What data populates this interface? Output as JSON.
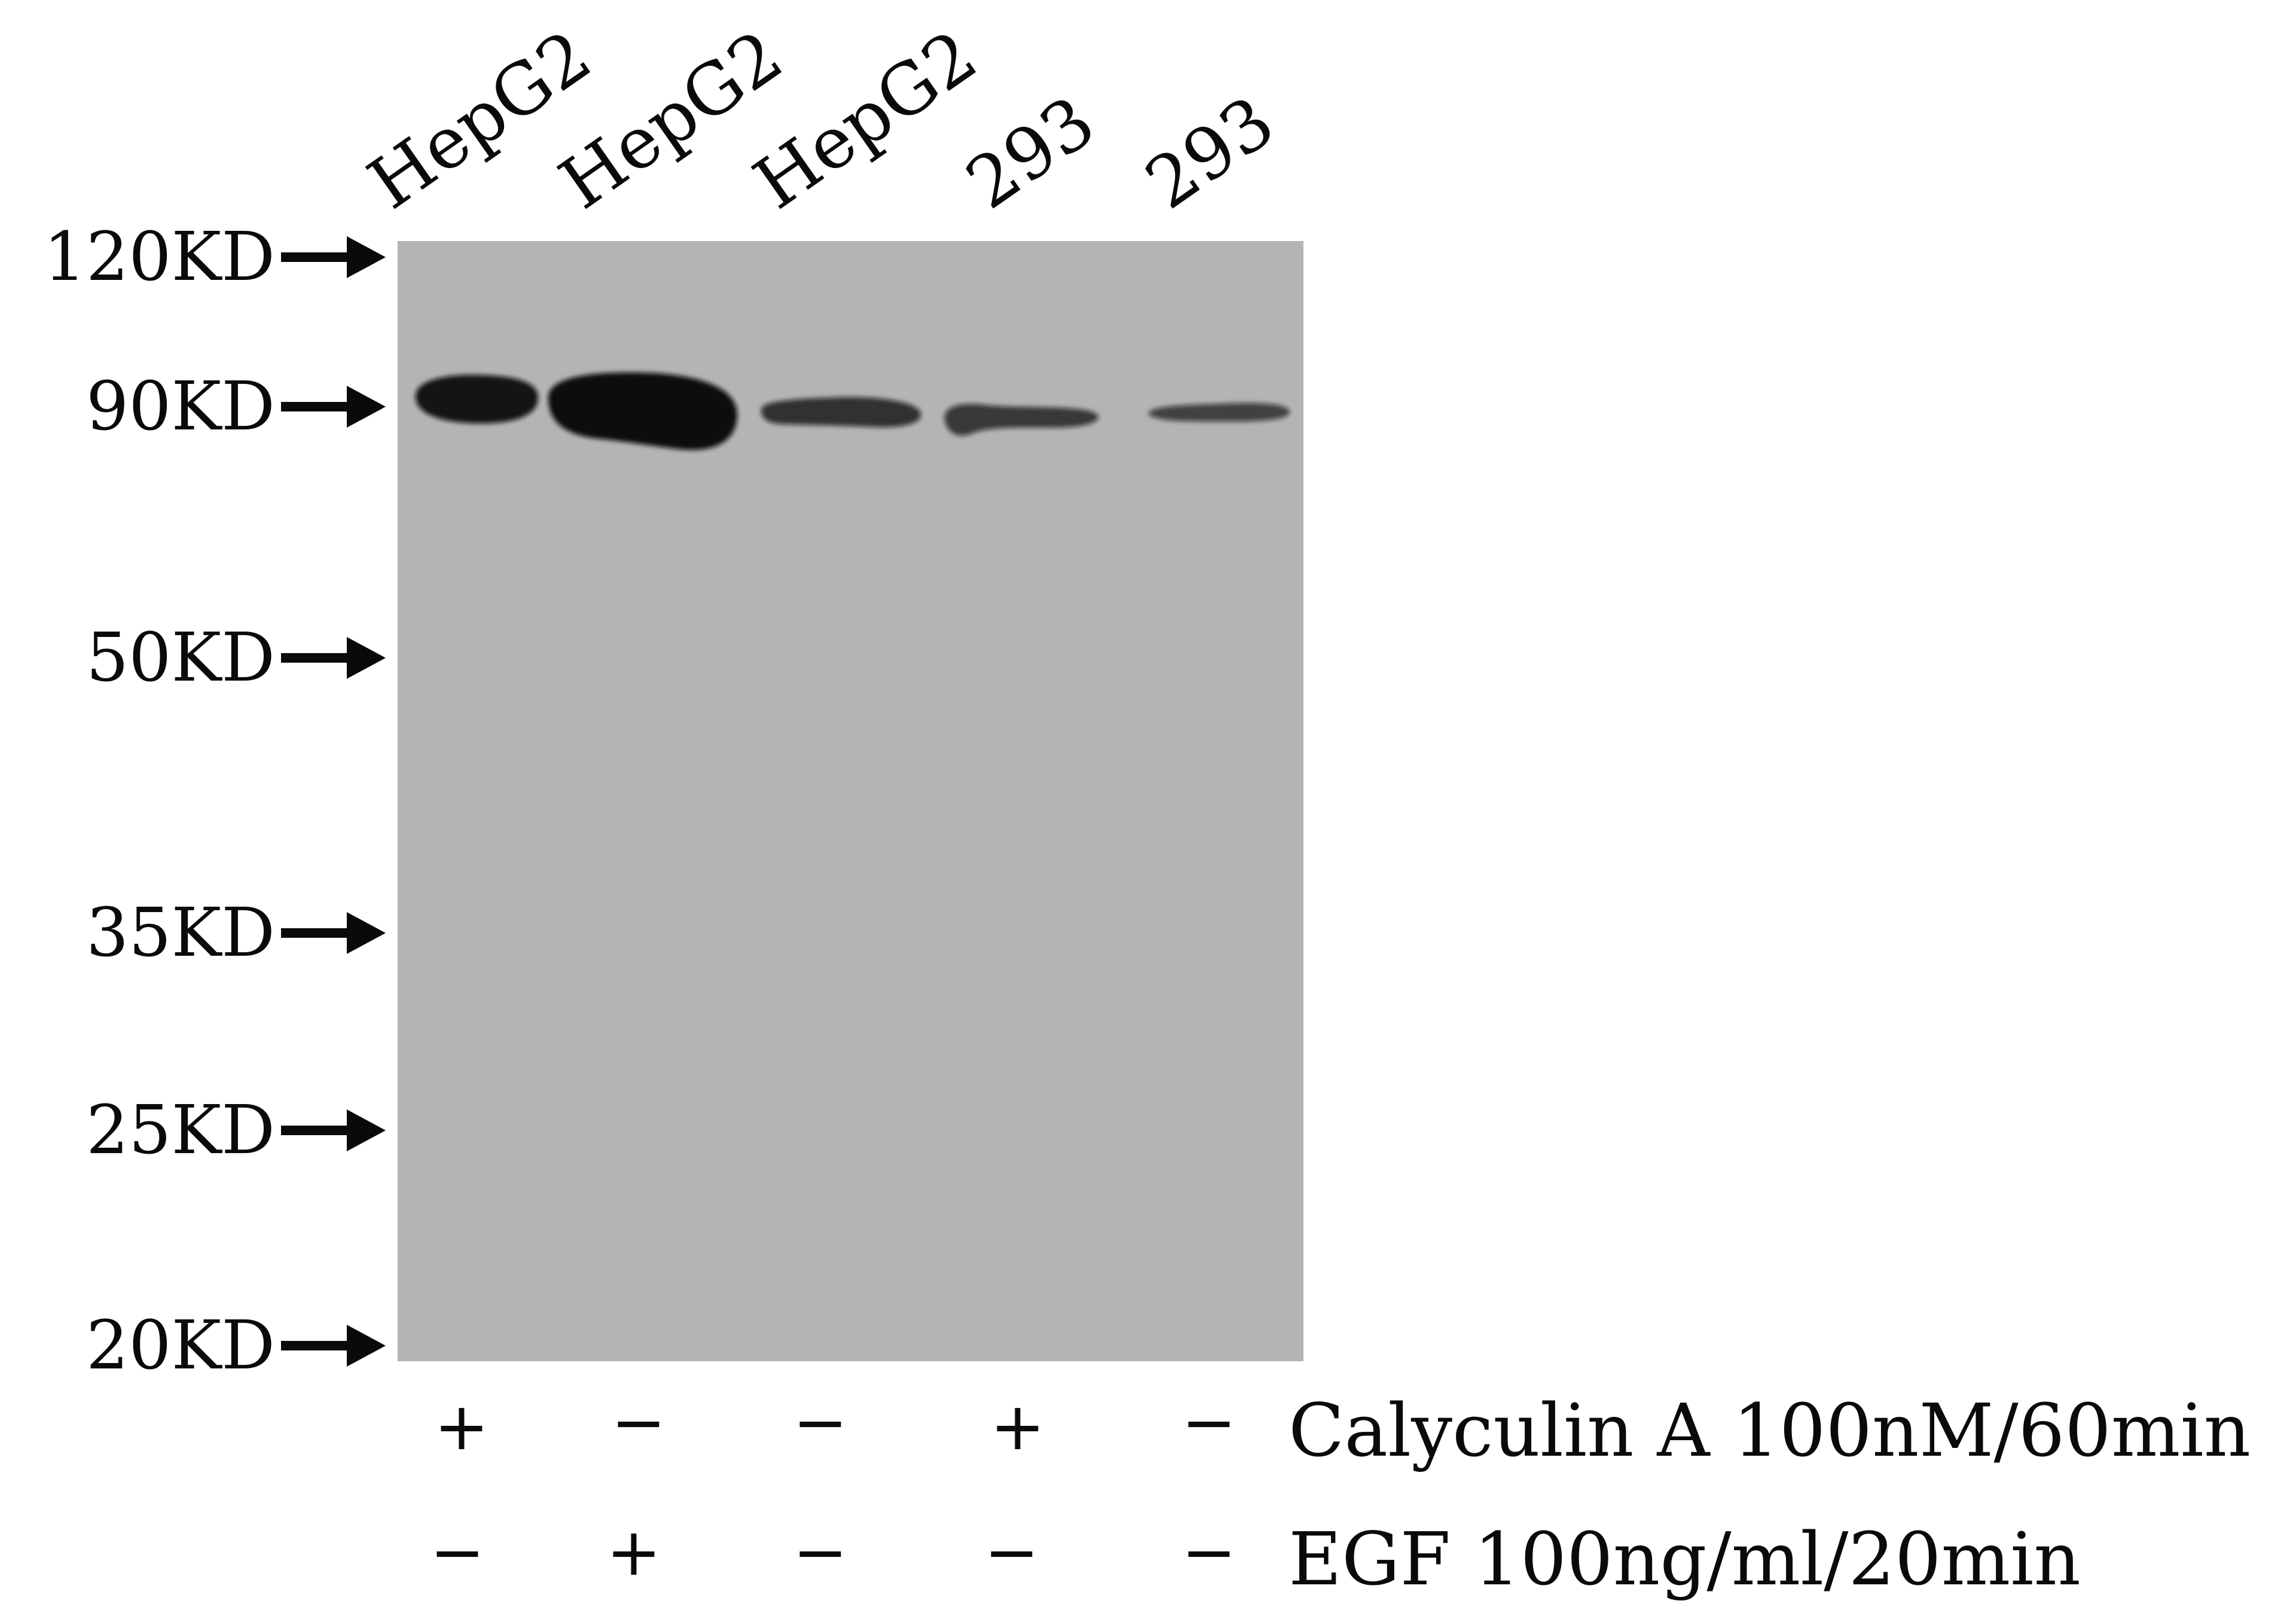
{
  "lanes": [
    {
      "label": "HepG2",
      "calyculin": "+",
      "egf": "−",
      "band_intensity": 0.9
    },
    {
      "label": "HepG2",
      "calyculin": "−",
      "egf": "+",
      "band_intensity": 1.0
    },
    {
      "label": "HepG2",
      "calyculin": "−",
      "egf": "−",
      "band_intensity": 0.55
    },
    {
      "label": "293",
      "calyculin": "+",
      "egf": "−",
      "band_intensity": 0.45
    },
    {
      "label": "293",
      "calyculin": "−",
      "egf": "−",
      "band_intensity": 0.35
    }
  ],
  "markers": [
    "120KD",
    "90KD",
    "50KD",
    "35KD",
    "25KD",
    "20KD"
  ],
  "treatments": {
    "calyculin_label": "Calyculin A 100nM/60min",
    "egf_label": "EGF 100ng/ml/20min"
  },
  "colors": {
    "membrane": "#b4b4b4",
    "band": "#0d0d0d",
    "text": "#0a0a0a"
  }
}
